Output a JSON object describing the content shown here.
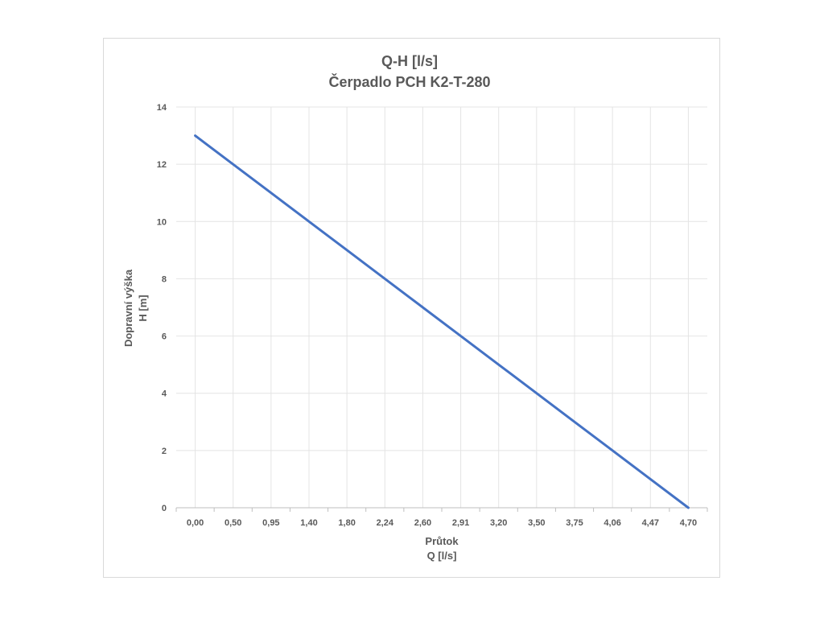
{
  "chart_data": {
    "type": "line",
    "title": [
      "Q-H  [l/s]",
      "Čerpadlo PCH K2-T-280"
    ],
    "xlabel": [
      "Průtok",
      "Q [l/s]"
    ],
    "ylabel": [
      "Dopravní výška",
      "H [m]"
    ],
    "categories": [
      "0,00",
      "0,50",
      "0,95",
      "1,40",
      "1,80",
      "2,24",
      "2,60",
      "2,91",
      "3,20",
      "3,50",
      "3,75",
      "4,06",
      "4,47",
      "4,70"
    ],
    "ylim": [
      0,
      14
    ],
    "yticks": [
      0,
      2,
      4,
      6,
      8,
      10,
      12,
      14
    ],
    "series": [
      {
        "values": [
          13,
          12,
          11,
          10,
          9,
          8,
          7,
          6,
          5,
          4,
          3,
          2,
          1,
          0
        ],
        "color": "#4472c4"
      }
    ],
    "grid": true,
    "legend": "none"
  }
}
